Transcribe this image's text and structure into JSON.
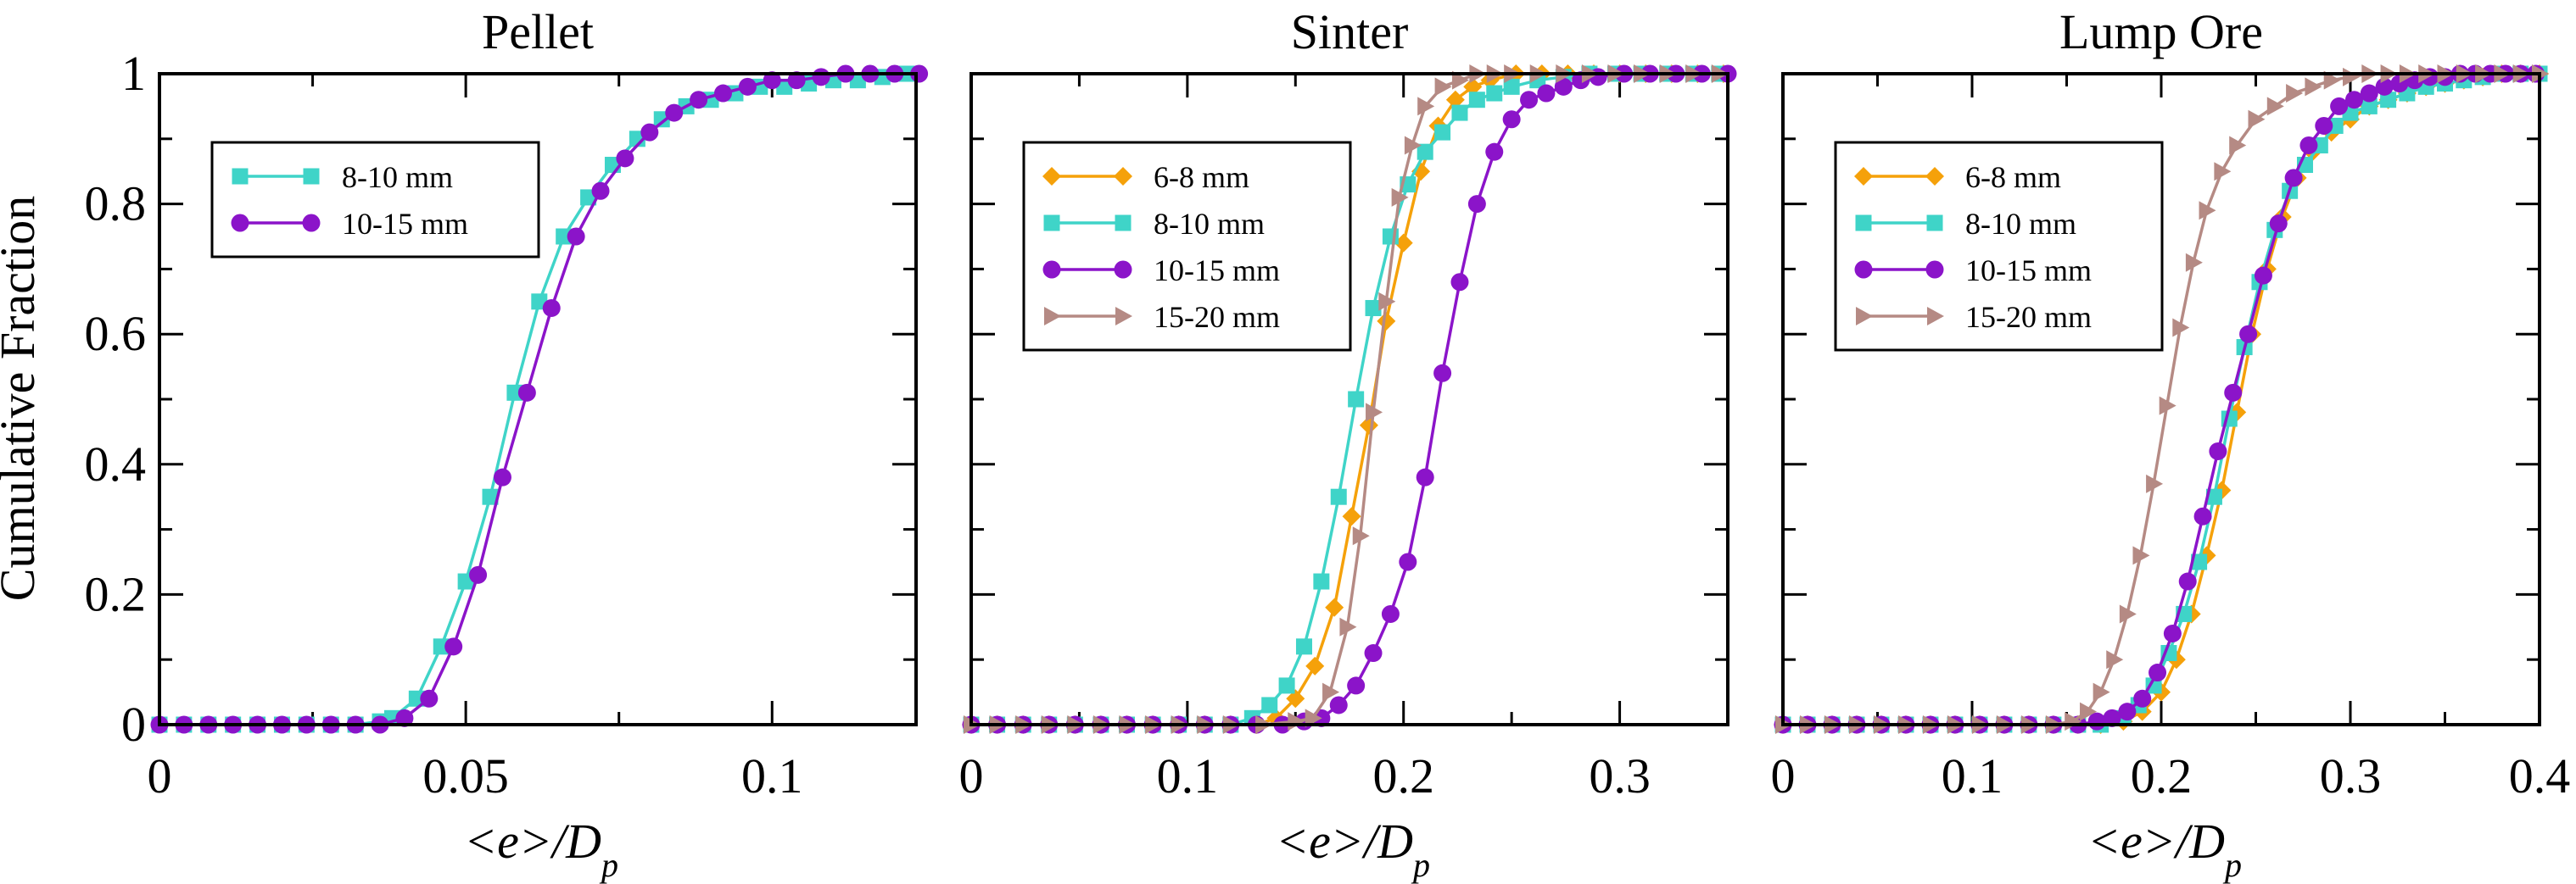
{
  "colors": {
    "6-8": "#f5a10a",
    "8-10": "#3fd4c8",
    "10-15": "#8b14c9",
    "15-20": "#b58a84"
  },
  "chart_data": [
    {
      "type": "line",
      "title": "Pellet",
      "ylabel": "Cumulative Fraction",
      "xlabel": "<e>/D",
      "xlabel_sub": "p",
      "xlim": [
        0,
        0.1235
      ],
      "ylim": [
        0,
        1
      ],
      "x_ticks": [
        {
          "v": 0,
          "label": "0"
        },
        {
          "v": 0.05,
          "label": "0.05"
        },
        {
          "v": 0.1,
          "label": "0.1"
        }
      ],
      "y_ticks": [
        {
          "v": 0,
          "label": "0"
        },
        {
          "v": 0.2,
          "label": "0.2"
        },
        {
          "v": 0.4,
          "label": "0.4"
        },
        {
          "v": 0.6,
          "label": "0.6"
        },
        {
          "v": 0.8,
          "label": "0.8"
        },
        {
          "v": 1,
          "label": "1"
        }
      ],
      "legend_position": "upper-left",
      "series": [
        {
          "name": "8-10 mm",
          "key": "8-10",
          "marker": "square",
          "x": [
            0,
            0.004,
            0.008,
            0.012,
            0.016,
            0.02,
            0.024,
            0.028,
            0.032,
            0.036,
            0.038,
            0.042,
            0.046,
            0.05,
            0.054,
            0.058,
            0.062,
            0.066,
            0.07,
            0.074,
            0.078,
            0.082,
            0.086,
            0.09,
            0.094,
            0.098,
            0.102,
            0.106,
            0.11,
            0.114,
            0.118,
            0.122
          ],
          "y": [
            0,
            0,
            0,
            0,
            0,
            0,
            0,
            0,
            0,
            0.005,
            0.01,
            0.04,
            0.12,
            0.22,
            0.35,
            0.51,
            0.65,
            0.75,
            0.81,
            0.86,
            0.9,
            0.93,
            0.95,
            0.96,
            0.97,
            0.98,
            0.98,
            0.985,
            0.99,
            0.99,
            0.995,
            1.0
          ]
        },
        {
          "name": "10-15 mm",
          "key": "10-15",
          "marker": "circle",
          "x": [
            0,
            0.004,
            0.008,
            0.012,
            0.016,
            0.02,
            0.024,
            0.028,
            0.032,
            0.036,
            0.04,
            0.044,
            0.048,
            0.052,
            0.056,
            0.06,
            0.064,
            0.068,
            0.072,
            0.076,
            0.08,
            0.084,
            0.088,
            0.092,
            0.096,
            0.1,
            0.104,
            0.108,
            0.112,
            0.116,
            0.12,
            0.124
          ],
          "y": [
            0,
            0,
            0,
            0,
            0,
            0,
            0,
            0,
            0,
            0,
            0.01,
            0.04,
            0.12,
            0.23,
            0.38,
            0.51,
            0.64,
            0.75,
            0.82,
            0.87,
            0.91,
            0.94,
            0.96,
            0.97,
            0.98,
            0.99,
            0.99,
            0.995,
            1.0,
            1.0,
            1.0,
            1.0
          ]
        }
      ]
    },
    {
      "type": "line",
      "title": "Sinter",
      "xlabel": "<e>/D",
      "xlabel_sub": "p",
      "xlim": [
        0,
        0.35
      ],
      "ylim": [
        0,
        1
      ],
      "x_ticks": [
        {
          "v": 0,
          "label": "0"
        },
        {
          "v": 0.1,
          "label": "0.1"
        },
        {
          "v": 0.2,
          "label": "0.2"
        },
        {
          "v": 0.3,
          "label": "0.3"
        }
      ],
      "y_ticks": [
        {
          "v": 0
        },
        {
          "v": 0.2
        },
        {
          "v": 0.4
        },
        {
          "v": 0.6
        },
        {
          "v": 0.8
        },
        {
          "v": 1
        }
      ],
      "legend_position": "upper-left",
      "series": [
        {
          "name": "6-8 mm",
          "key": "6-8",
          "marker": "diamond",
          "x": [
            0,
            0.012,
            0.024,
            0.036,
            0.048,
            0.06,
            0.072,
            0.084,
            0.096,
            0.108,
            0.12,
            0.132,
            0.141,
            0.15,
            0.159,
            0.168,
            0.176,
            0.184,
            0.192,
            0.2,
            0.208,
            0.216,
            0.224,
            0.232,
            0.24,
            0.252,
            0.264,
            0.276,
            0.288,
            0.3,
            0.312,
            0.324,
            0.336,
            0.348
          ],
          "y": [
            0,
            0,
            0,
            0,
            0,
            0,
            0,
            0,
            0,
            0,
            0,
            0,
            0.01,
            0.04,
            0.09,
            0.18,
            0.32,
            0.46,
            0.62,
            0.74,
            0.85,
            0.92,
            0.96,
            0.98,
            0.99,
            1.0,
            1.0,
            1.0,
            1.0,
            1.0,
            1.0,
            1.0,
            1.0,
            1.0
          ]
        },
        {
          "name": "8-10 mm",
          "key": "8-10",
          "marker": "square",
          "x": [
            0,
            0.012,
            0.024,
            0.036,
            0.048,
            0.06,
            0.072,
            0.084,
            0.096,
            0.108,
            0.12,
            0.13,
            0.138,
            0.146,
            0.154,
            0.162,
            0.17,
            0.178,
            0.186,
            0.194,
            0.202,
            0.21,
            0.218,
            0.226,
            0.234,
            0.242,
            0.25,
            0.262,
            0.274,
            0.286,
            0.298,
            0.31,
            0.322,
            0.334,
            0.346
          ],
          "y": [
            0,
            0,
            0,
            0,
            0,
            0,
            0,
            0,
            0,
            0,
            0,
            0.01,
            0.03,
            0.06,
            0.12,
            0.22,
            0.35,
            0.5,
            0.64,
            0.75,
            0.83,
            0.88,
            0.91,
            0.94,
            0.96,
            0.97,
            0.98,
            0.99,
            0.995,
            1.0,
            1.0,
            1.0,
            1.0,
            1.0,
            1.0
          ]
        },
        {
          "name": "10-15 mm",
          "key": "10-15",
          "marker": "circle",
          "x": [
            0,
            0.012,
            0.024,
            0.036,
            0.048,
            0.06,
            0.072,
            0.084,
            0.096,
            0.108,
            0.12,
            0.132,
            0.144,
            0.154,
            0.162,
            0.17,
            0.178,
            0.186,
            0.194,
            0.202,
            0.21,
            0.218,
            0.226,
            0.234,
            0.242,
            0.25,
            0.258,
            0.266,
            0.274,
            0.282,
            0.29,
            0.302,
            0.314,
            0.326,
            0.338,
            0.35
          ],
          "y": [
            0,
            0,
            0,
            0,
            0,
            0,
            0,
            0,
            0,
            0,
            0,
            0,
            0,
            0.005,
            0.01,
            0.03,
            0.06,
            0.11,
            0.17,
            0.25,
            0.38,
            0.54,
            0.68,
            0.8,
            0.88,
            0.93,
            0.96,
            0.97,
            0.98,
            0.99,
            0.995,
            1.0,
            1.0,
            1.0,
            1.0,
            1.0
          ]
        },
        {
          "name": "15-20 mm",
          "key": "15-20",
          "marker": "triangle",
          "x": [
            0,
            0.012,
            0.024,
            0.036,
            0.048,
            0.06,
            0.072,
            0.084,
            0.096,
            0.108,
            0.12,
            0.135,
            0.15,
            0.158,
            0.166,
            0.174,
            0.18,
            0.186,
            0.192,
            0.198,
            0.204,
            0.21,
            0.218,
            0.226,
            0.234,
            0.242,
            0.25,
            0.262,
            0.274,
            0.286,
            0.298,
            0.31,
            0.322,
            0.334,
            0.346
          ],
          "y": [
            0,
            0,
            0,
            0,
            0,
            0,
            0,
            0,
            0,
            0,
            0,
            0,
            0.005,
            0.01,
            0.05,
            0.15,
            0.29,
            0.48,
            0.65,
            0.81,
            0.89,
            0.95,
            0.98,
            0.99,
            1.0,
            1.0,
            1.0,
            1.0,
            1.0,
            1.0,
            1.0,
            1.0,
            1.0,
            1.0,
            1.0
          ]
        }
      ]
    },
    {
      "type": "line",
      "title": "Lump Ore",
      "xlabel": "<e>/D",
      "xlabel_sub": "p",
      "xlim": [
        0,
        0.4
      ],
      "ylim": [
        0,
        1
      ],
      "x_ticks": [
        {
          "v": 0,
          "label": "0"
        },
        {
          "v": 0.1,
          "label": "0.1"
        },
        {
          "v": 0.2,
          "label": "0.2"
        },
        {
          "v": 0.3,
          "label": "0.3"
        },
        {
          "v": 0.4,
          "label": "0.4"
        }
      ],
      "y_ticks": [
        {
          "v": 0
        },
        {
          "v": 0.2
        },
        {
          "v": 0.4
        },
        {
          "v": 0.6
        },
        {
          "v": 0.8
        },
        {
          "v": 1
        }
      ],
      "legend_position": "upper-left",
      "series": [
        {
          "name": "6-8 mm",
          "key": "6-8",
          "marker": "diamond",
          "x": [
            0,
            0.013,
            0.026,
            0.039,
            0.052,
            0.065,
            0.078,
            0.091,
            0.104,
            0.117,
            0.13,
            0.143,
            0.156,
            0.168,
            0.18,
            0.19,
            0.2,
            0.208,
            0.216,
            0.224,
            0.232,
            0.24,
            0.248,
            0.256,
            0.264,
            0.272,
            0.28,
            0.29,
            0.3,
            0.31,
            0.32,
            0.33,
            0.34,
            0.35,
            0.36,
            0.37,
            0.38,
            0.39,
            0.4
          ],
          "y": [
            0,
            0,
            0,
            0,
            0,
            0,
            0,
            0,
            0,
            0,
            0,
            0,
            0,
            0,
            0.005,
            0.02,
            0.05,
            0.1,
            0.17,
            0.26,
            0.36,
            0.48,
            0.6,
            0.7,
            0.78,
            0.84,
            0.88,
            0.91,
            0.93,
            0.95,
            0.96,
            0.97,
            0.98,
            0.985,
            0.99,
            0.995,
            1.0,
            1.0,
            1.0
          ]
        },
        {
          "name": "8-10 mm",
          "key": "8-10",
          "marker": "square",
          "x": [
            0,
            0.013,
            0.026,
            0.039,
            0.052,
            0.065,
            0.078,
            0.091,
            0.104,
            0.117,
            0.13,
            0.143,
            0.156,
            0.168,
            0.18,
            0.188,
            0.196,
            0.204,
            0.212,
            0.22,
            0.228,
            0.236,
            0.244,
            0.252,
            0.26,
            0.268,
            0.276,
            0.284,
            0.292,
            0.3,
            0.31,
            0.32,
            0.33,
            0.34,
            0.35,
            0.36,
            0.37,
            0.38,
            0.39,
            0.4
          ],
          "y": [
            0,
            0,
            0,
            0,
            0,
            0,
            0,
            0,
            0,
            0,
            0,
            0,
            0,
            0,
            0.01,
            0.03,
            0.06,
            0.11,
            0.17,
            0.25,
            0.35,
            0.47,
            0.58,
            0.68,
            0.76,
            0.82,
            0.86,
            0.89,
            0.92,
            0.94,
            0.95,
            0.96,
            0.97,
            0.98,
            0.985,
            0.99,
            0.995,
            1.0,
            1.0,
            1.0
          ]
        },
        {
          "name": "10-15 mm",
          "key": "10-15",
          "marker": "circle",
          "x": [
            0,
            0.013,
            0.026,
            0.039,
            0.052,
            0.065,
            0.078,
            0.091,
            0.104,
            0.117,
            0.13,
            0.143,
            0.156,
            0.166,
            0.174,
            0.182,
            0.19,
            0.198,
            0.206,
            0.214,
            0.222,
            0.23,
            0.238,
            0.246,
            0.254,
            0.262,
            0.27,
            0.278,
            0.286,
            0.294,
            0.302,
            0.31,
            0.318,
            0.326,
            0.334,
            0.342,
            0.35,
            0.358,
            0.366,
            0.374,
            0.382,
            0.39,
            0.398
          ],
          "y": [
            0,
            0,
            0,
            0,
            0,
            0,
            0,
            0,
            0,
            0,
            0,
            0,
            0,
            0.005,
            0.01,
            0.02,
            0.04,
            0.08,
            0.14,
            0.22,
            0.32,
            0.42,
            0.51,
            0.6,
            0.69,
            0.77,
            0.84,
            0.89,
            0.92,
            0.95,
            0.96,
            0.97,
            0.98,
            0.985,
            0.99,
            0.995,
            0.995,
            1.0,
            1.0,
            1.0,
            1.0,
            1.0,
            1.0
          ]
        },
        {
          "name": "15-20 mm",
          "key": "15-20",
          "marker": "triangle",
          "x": [
            0,
            0.013,
            0.026,
            0.039,
            0.052,
            0.065,
            0.078,
            0.091,
            0.104,
            0.117,
            0.13,
            0.143,
            0.153,
            0.161,
            0.168,
            0.175,
            0.182,
            0.189,
            0.196,
            0.203,
            0.21,
            0.217,
            0.224,
            0.232,
            0.24,
            0.25,
            0.26,
            0.27,
            0.28,
            0.29,
            0.3,
            0.31,
            0.32,
            0.33,
            0.34,
            0.35,
            0.36,
            0.37,
            0.38,
            0.39,
            0.4
          ],
          "y": [
            0,
            0,
            0,
            0,
            0,
            0,
            0,
            0,
            0,
            0,
            0,
            0,
            0.005,
            0.02,
            0.05,
            0.1,
            0.17,
            0.26,
            0.37,
            0.49,
            0.61,
            0.71,
            0.79,
            0.85,
            0.89,
            0.93,
            0.95,
            0.97,
            0.98,
            0.99,
            0.995,
            1.0,
            1.0,
            1.0,
            1.0,
            1.0,
            1.0,
            1.0,
            1.0,
            1.0,
            1.0
          ]
        }
      ]
    }
  ]
}
